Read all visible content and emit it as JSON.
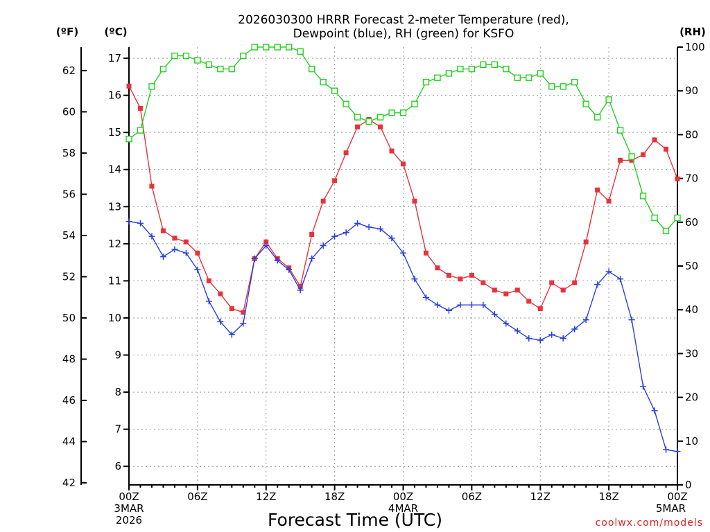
{
  "chart_data": {
    "type": "line",
    "title_line1": "2026030300 HRRR Forecast 2-meter Temperature (red),",
    "title_line2": "Dewpoint (blue), RH (green) for KSFO",
    "xlabel": "Forecast Time (UTC)",
    "credit": "coolwx.com/models",
    "units": {
      "fahrenheit": "(ºF)",
      "celsius": "(ºC)",
      "rh": "(RH)"
    },
    "x_hours_range": [
      0,
      48
    ],
    "celsius_range": [
      5.5,
      17.3
    ],
    "rh_range": [
      0,
      100
    ],
    "x_ticks": [
      {
        "hour": 0,
        "lines": [
          "00Z",
          "3MAR",
          "2026"
        ]
      },
      {
        "hour": 6,
        "lines": [
          "06Z"
        ]
      },
      {
        "hour": 12,
        "lines": [
          "12Z"
        ]
      },
      {
        "hour": 18,
        "lines": [
          "18Z"
        ]
      },
      {
        "hour": 24,
        "lines": [
          "00Z",
          "4MAR"
        ]
      },
      {
        "hour": 30,
        "lines": [
          "06Z"
        ]
      },
      {
        "hour": 36,
        "lines": [
          "12Z"
        ]
      },
      {
        "hour": 42,
        "lines": [
          "18Z"
        ]
      },
      {
        "hour": 48,
        "lines": [
          "00Z",
          "5MAR"
        ]
      }
    ],
    "celsius_ticks": [
      6,
      7,
      8,
      9,
      10,
      11,
      12,
      13,
      14,
      15,
      16,
      17
    ],
    "fahrenheit_ticks": [
      42,
      44,
      46,
      48,
      50,
      52,
      54,
      56,
      58,
      60,
      62
    ],
    "rh_ticks": [
      0,
      10,
      20,
      30,
      40,
      50,
      60,
      70,
      80,
      90,
      100
    ],
    "series": [
      {
        "name": "Temperature",
        "color": "#e8323a",
        "marker": "filled-square",
        "axis": "celsius",
        "values": [
          16.25,
          15.65,
          13.55,
          12.35,
          12.15,
          12.05,
          11.75,
          11.0,
          10.65,
          10.25,
          10.15,
          11.6,
          12.05,
          11.6,
          11.35,
          10.85,
          12.25,
          13.15,
          13.7,
          14.45,
          15.15,
          15.35,
          15.15,
          14.5,
          14.15,
          13.15,
          11.75,
          11.35,
          11.15,
          11.05,
          11.15,
          10.95,
          10.75,
          10.65,
          10.75,
          10.45,
          10.25,
          10.95,
          10.75,
          10.95,
          12.05,
          13.45,
          13.15,
          14.25,
          14.25,
          14.4,
          14.8,
          14.55,
          13.75
        ]
      },
      {
        "name": "Dewpoint",
        "color": "#2a3fe0",
        "marker": "plus",
        "axis": "celsius",
        "values": [
          12.6,
          12.55,
          12.2,
          11.65,
          11.85,
          11.75,
          11.3,
          10.45,
          9.9,
          9.55,
          9.85,
          11.6,
          11.95,
          11.55,
          11.3,
          10.75,
          11.6,
          11.95,
          12.2,
          12.3,
          12.55,
          12.45,
          12.4,
          12.15,
          11.75,
          11.05,
          10.55,
          10.35,
          10.2,
          10.35,
          10.35,
          10.35,
          10.1,
          9.85,
          9.65,
          9.45,
          9.4,
          9.55,
          9.45,
          9.7,
          9.95,
          10.9,
          11.25,
          11.05,
          9.95,
          8.15,
          7.5,
          6.45,
          6.4
        ]
      },
      {
        "name": "RH",
        "color": "#22d020",
        "marker": "open-square",
        "axis": "rh",
        "values": [
          79,
          81,
          91,
          95,
          98,
          98,
          97,
          96,
          95,
          95,
          98,
          100,
          100,
          100,
          100,
          99,
          95,
          92,
          90,
          87,
          84,
          83,
          84,
          85,
          85,
          87,
          92,
          93,
          94,
          95,
          95,
          96,
          96,
          95,
          93,
          93,
          94,
          91,
          91,
          92,
          87,
          84,
          88,
          81,
          75,
          66,
          61,
          58,
          61
        ]
      }
    ]
  }
}
